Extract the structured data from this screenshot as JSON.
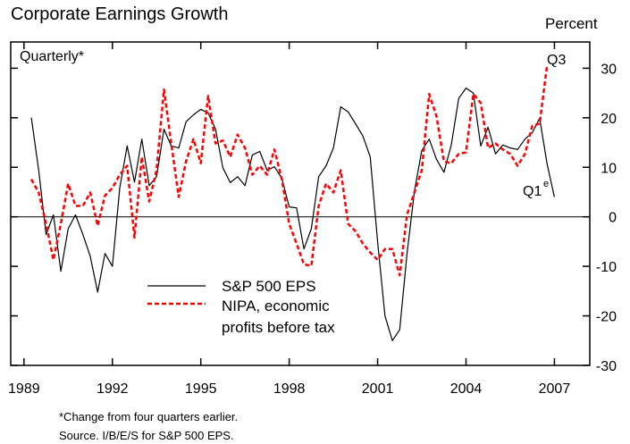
{
  "chart_data": {
    "type": "line",
    "title": "Corporate Earnings Growth",
    "y_axis_label": "Percent",
    "note": "Quarterly*",
    "x": [
      1989.25,
      1989.5,
      1989.75,
      1990,
      1990.25,
      1990.5,
      1990.75,
      1991,
      1991.25,
      1991.5,
      1991.75,
      1992,
      1992.25,
      1992.5,
      1992.75,
      1993,
      1993.25,
      1993.5,
      1993.75,
      1994,
      1994.25,
      1994.5,
      1994.75,
      1995,
      1995.25,
      1995.5,
      1995.75,
      1996,
      1996.25,
      1996.5,
      1996.75,
      1997,
      1997.25,
      1997.5,
      1997.75,
      1998,
      1998.25,
      1998.5,
      1998.75,
      1999,
      1999.25,
      1999.5,
      1999.75,
      2000,
      2000.25,
      2000.5,
      2000.75,
      2001,
      2001.25,
      2001.5,
      2001.75,
      2002,
      2002.25,
      2002.5,
      2002.75,
      2003,
      2003.25,
      2003.5,
      2003.75,
      2004,
      2004.25,
      2004.5,
      2004.75,
      2005,
      2005.25,
      2005.5,
      2005.75,
      2006,
      2006.25,
      2006.5,
      2006.75,
      2007
    ],
    "series": [
      {
        "name": "S&P 500 EPS",
        "color": "#000000",
        "dashed": false,
        "values": [
          20,
          9.4,
          -3.6,
          0.4,
          -11,
          -2.4,
          0.4,
          -3.6,
          -8,
          -15.2,
          -7.4,
          -10,
          5.8,
          14.3,
          7,
          15.7,
          6.3,
          8.1,
          17.7,
          14.3,
          13.9,
          19.2,
          20.6,
          21.7,
          21,
          17.7,
          9.9,
          6.9,
          8.1,
          6.3,
          12.5,
          13.2,
          9.4,
          10.1,
          7.8,
          2,
          1.8,
          -6.5,
          -2.4,
          8.1,
          10.3,
          13.9,
          22.2,
          21.2,
          18.8,
          16.3,
          12.1,
          -5.1,
          -20,
          -25,
          -22.8,
          -7.4,
          5.2,
          13.4,
          15.7,
          11.6,
          9,
          14.5,
          23.9,
          26,
          25,
          14.3,
          18.1,
          12.7,
          14.5,
          13.9,
          13.6,
          15.7,
          17,
          19.9,
          10.7,
          4
        ]
      },
      {
        "name": "NIPA, economic profits before tax",
        "color": "#ff0000",
        "dashed": true,
        "values": [
          7.6,
          4.9,
          -1.4,
          -8.7,
          -1.4,
          6.7,
          2.2,
          2.2,
          4.9,
          -1.8,
          4.3,
          5.8,
          8.5,
          10.3,
          -4.2,
          12.1,
          3.1,
          9.4,
          25.7,
          14.8,
          4,
          11.2,
          15.7,
          10.8,
          24.4,
          14.8,
          15.4,
          12.1,
          16.6,
          13.9,
          8.5,
          10.3,
          8.5,
          13.6,
          7.6,
          -1.4,
          -5.4,
          -9.6,
          -9.9,
          2.2,
          6.7,
          4.9,
          9.4,
          -1.4,
          -2.9,
          -5.4,
          -7.2,
          -8.7,
          -6.5,
          -6.5,
          -11.8,
          0.4,
          4.9,
          9.4,
          24.8,
          20.3,
          11.2,
          10.8,
          12.7,
          13,
          24.8,
          23,
          13.9,
          14.8,
          13.6,
          12.7,
          10.3,
          12.7,
          18.4,
          18.8,
          30.6,
          null
        ]
      }
    ],
    "annotations": [
      {
        "text": "Q3",
        "color": "#ff0000"
      },
      {
        "text": "Q1",
        "superscript": "e",
        "color": "#000000"
      }
    ],
    "xlim": [
      1988.55,
      2008.2
    ],
    "xticks": [
      1989,
      1992,
      1995,
      1998,
      2001,
      2004,
      2007
    ],
    "ylim": [
      -30,
      35.3
    ],
    "yticks": [
      -30,
      -20,
      -10,
      0,
      10,
      20,
      30
    ],
    "zero_line": true,
    "footnotes": [
      "*Change from four quarters earlier.",
      "Source. I/B/E/S for S&P 500 EPS."
    ]
  }
}
